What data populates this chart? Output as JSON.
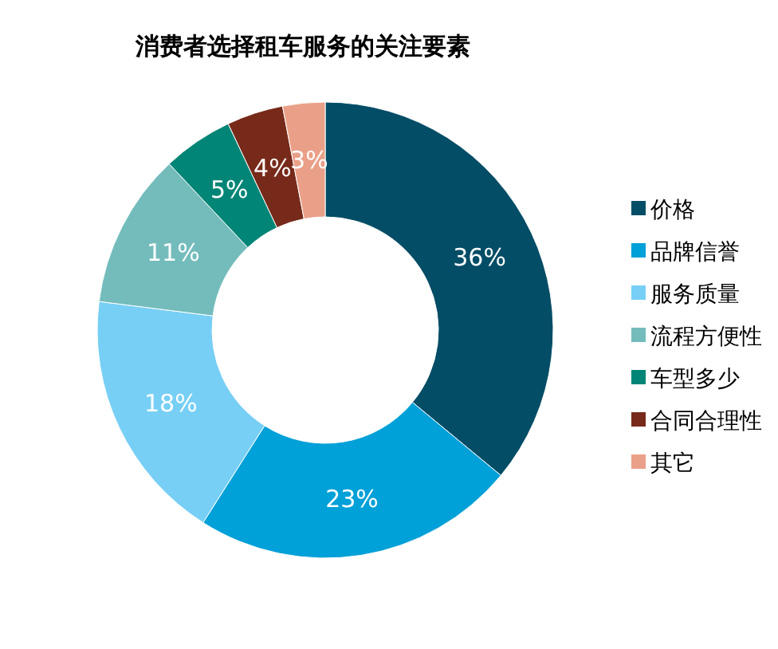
{
  "chart_data": {
    "type": "donut",
    "title": "消费者选择租车服务的关注要素",
    "categories": [
      "价格",
      "品牌信誉",
      "服务质量",
      "流程方便性",
      "车型多少",
      "合同合理性",
      "其它"
    ],
    "values": [
      36,
      23,
      18,
      11,
      5,
      4,
      3
    ],
    "colors": [
      "#034d66",
      "#00a0d8",
      "#77cff5",
      "#74bcbc",
      "#008576",
      "#772a1a",
      "#eaa088"
    ],
    "value_labels": [
      "36%",
      "23%",
      "18%",
      "11%",
      "5%",
      "4%",
      "3%"
    ],
    "legend": "right"
  }
}
